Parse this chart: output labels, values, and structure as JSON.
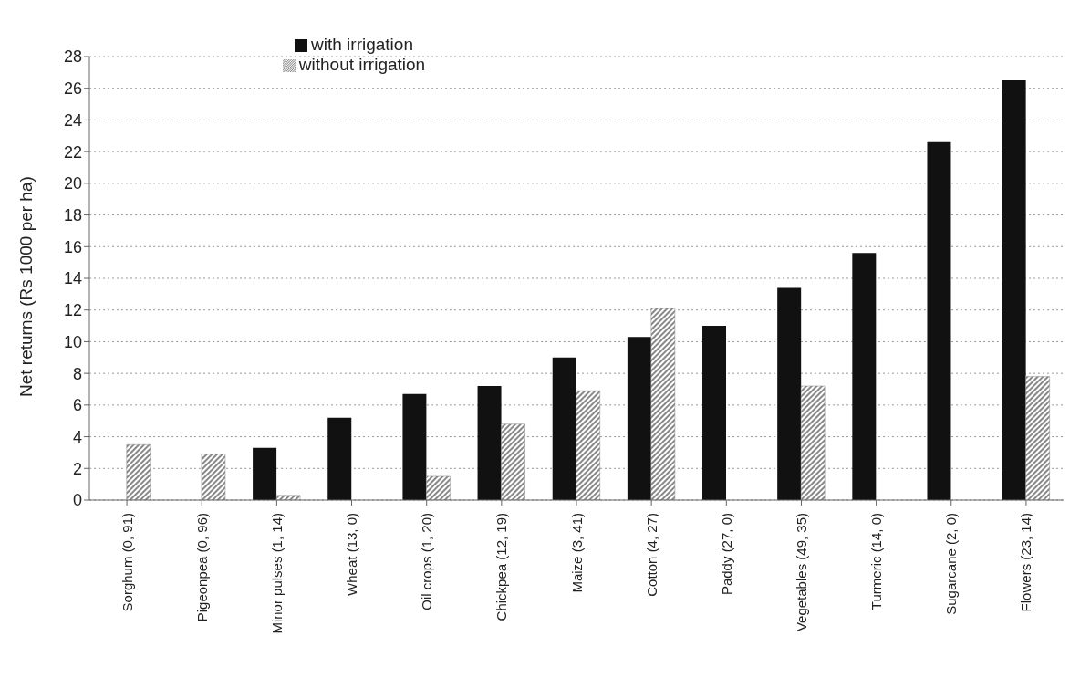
{
  "chart_data": {
    "type": "bar",
    "ylabel": "Net returns (Rs 1000 per ha)",
    "categories": [
      "Sorghum (0, 91)",
      "Pigeonpea (0, 96)",
      "Minor pulses (1, 14)",
      "Wheat (13, 0)",
      "Oil crops (1, 20)",
      "Chickpea (12, 19)",
      "Maize (3, 41)",
      "Cotton (4, 27)",
      "Paddy (27, 0)",
      "Vegetables (49, 35)",
      "Turmeric (14, 0)",
      "Sugarcane (2, 0)",
      "Flowers (23, 14)"
    ],
    "series": [
      {
        "name": "with irrigation",
        "color": "#111111",
        "values": [
          0,
          0,
          3.3,
          5.2,
          6.7,
          7.2,
          9.0,
          10.3,
          11.0,
          13.4,
          15.6,
          22.6,
          26.5
        ]
      },
      {
        "name": "without irrigation",
        "color": "#888888",
        "values": [
          3.5,
          2.9,
          0.3,
          0,
          1.5,
          4.8,
          6.9,
          12.1,
          0,
          7.2,
          0,
          0,
          7.8
        ]
      }
    ],
    "ylim": [
      0,
      28
    ],
    "yticks": [
      0,
      2,
      4,
      6,
      8,
      10,
      12,
      14,
      16,
      18,
      20,
      22,
      24,
      26,
      28
    ],
    "grid": "y",
    "legend": "top"
  }
}
